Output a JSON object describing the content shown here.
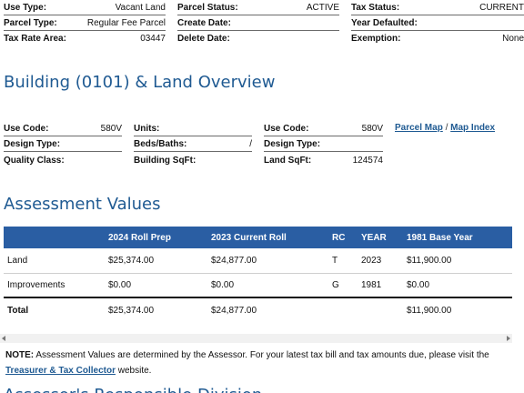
{
  "top_info": {
    "col1": [
      {
        "label": "Use Type:",
        "value": "Vacant Land"
      },
      {
        "label": "Parcel Type:",
        "value": "Regular Fee Parcel"
      },
      {
        "label": "Tax Rate Area:",
        "value": "03447"
      }
    ],
    "col2": [
      {
        "label": "Parcel Status:",
        "value": "ACTIVE"
      },
      {
        "label": "Create Date:",
        "value": ""
      },
      {
        "label": "Delete Date:",
        "value": ""
      }
    ],
    "col3": [
      {
        "label": "Tax Status:",
        "value": "CURRENT"
      },
      {
        "label": "Year Defaulted:",
        "value": ""
      },
      {
        "label": "Exemption:",
        "value": "None"
      }
    ]
  },
  "building": {
    "heading": "Building (0101) & Land Overview",
    "col1": [
      {
        "label": "Use Code:",
        "value": "580V"
      },
      {
        "label": "Design Type:",
        "value": ""
      },
      {
        "label": "Quality Class:",
        "value": ""
      }
    ],
    "col2": [
      {
        "label": "Units:",
        "value": ""
      },
      {
        "label": "Beds/Baths:",
        "value": "/"
      },
      {
        "label": "Building SqFt:",
        "value": ""
      }
    ],
    "col3": [
      {
        "label": "Use Code:",
        "value": "580V"
      },
      {
        "label": "Design Type:",
        "value": ""
      },
      {
        "label": "Land SqFt:",
        "value": "124574"
      }
    ],
    "links": {
      "parcel_map": "Parcel Map",
      "separator": "/",
      "map_index": "Map Index"
    }
  },
  "assessment": {
    "heading": "Assessment Values",
    "columns": [
      "",
      "2024 Roll Prep",
      "2023 Current Roll",
      "RC",
      "YEAR",
      "1981 Base Year"
    ],
    "rows": [
      [
        "Land",
        "$25,374.00",
        "$24,877.00",
        "T",
        "2023",
        "$11,900.00"
      ],
      [
        "Improvements",
        "$0.00",
        "$0.00",
        "G",
        "1981",
        "$0.00"
      ]
    ],
    "total": [
      "Total",
      "$25,374.00",
      "$24,877.00",
      "",
      "",
      "$11,900.00"
    ]
  },
  "note": {
    "label": "NOTE:",
    "text": " Assessment Values are determined by the Assessor. For your latest tax bill and tax amounts due, please visit the ",
    "link": "Treasurer & Tax Collector",
    "suffix": " website."
  },
  "next_heading": "Assessor's Responsible Division"
}
